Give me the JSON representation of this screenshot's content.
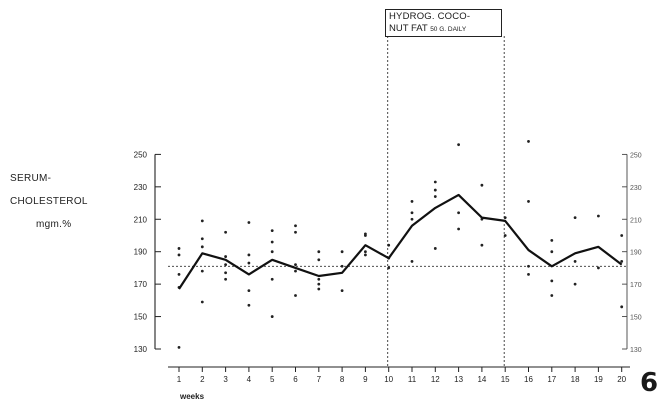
{
  "chart_data": {
    "type": "line",
    "title": "",
    "xlabel": "weeks",
    "ylabel": [
      "SERUM-",
      "CHOLESTEROL",
      "mgm.%"
    ],
    "x": [
      1,
      2,
      3,
      4,
      5,
      6,
      7,
      8,
      9,
      10,
      11,
      12,
      13,
      14,
      15,
      16,
      17,
      18,
      19,
      20
    ],
    "ylim": [
      130,
      250
    ],
    "y_ticks": [
      "130",
      "150",
      "170",
      "190",
      "210",
      "230",
      "250"
    ],
    "y_ticks_right": [
      "130",
      "150",
      "170",
      "190",
      "210",
      "230",
      "250"
    ],
    "mean_series": {
      "values": [
        167,
        189,
        185,
        176,
        185,
        180,
        175,
        177,
        194,
        186,
        206,
        217,
        225,
        211,
        209,
        191,
        181,
        189,
        193,
        182
      ]
    },
    "reference_level": 181,
    "points": [
      [
        1,
        192
      ],
      [
        1,
        188
      ],
      [
        1,
        176
      ],
      [
        1,
        168
      ],
      [
        1,
        131
      ],
      [
        2,
        209
      ],
      [
        2,
        198
      ],
      [
        2,
        193
      ],
      [
        2,
        178
      ],
      [
        2,
        159
      ],
      [
        3,
        202
      ],
      [
        3,
        187
      ],
      [
        3,
        182
      ],
      [
        3,
        177
      ],
      [
        3,
        173
      ],
      [
        4,
        208
      ],
      [
        4,
        188
      ],
      [
        4,
        183
      ],
      [
        4,
        166
      ],
      [
        4,
        157
      ],
      [
        5,
        203
      ],
      [
        5,
        196
      ],
      [
        5,
        190
      ],
      [
        5,
        173
      ],
      [
        5,
        150
      ],
      [
        6,
        206
      ],
      [
        6,
        202
      ],
      [
        6,
        182
      ],
      [
        6,
        178
      ],
      [
        6,
        163
      ],
      [
        7,
        190
      ],
      [
        7,
        185
      ],
      [
        7,
        173
      ],
      [
        7,
        170
      ],
      [
        7,
        167
      ],
      [
        8,
        190
      ],
      [
        8,
        181
      ],
      [
        8,
        166
      ],
      [
        9,
        201
      ],
      [
        9,
        200
      ],
      [
        9,
        190
      ],
      [
        9,
        188
      ],
      [
        10,
        194
      ],
      [
        10,
        186
      ],
      [
        10,
        180
      ],
      [
        11,
        221
      ],
      [
        11,
        214
      ],
      [
        11,
        210
      ],
      [
        11,
        184
      ],
      [
        12,
        233
      ],
      [
        12,
        228
      ],
      [
        12,
        224
      ],
      [
        12,
        192
      ],
      [
        13,
        256
      ],
      [
        13,
        214
      ],
      [
        13,
        204
      ],
      [
        14,
        231
      ],
      [
        14,
        210
      ],
      [
        14,
        194
      ],
      [
        15,
        211
      ],
      [
        15,
        200
      ],
      [
        16,
        258
      ],
      [
        16,
        221
      ],
      [
        16,
        181
      ],
      [
        16,
        176
      ],
      [
        17,
        197
      ],
      [
        17,
        190
      ],
      [
        17,
        172
      ],
      [
        17,
        163
      ],
      [
        18,
        211
      ],
      [
        18,
        184
      ],
      [
        18,
        170
      ],
      [
        19,
        212
      ],
      [
        19,
        180
      ],
      [
        20,
        200
      ],
      [
        20,
        184
      ],
      [
        20,
        156
      ]
    ],
    "treatment_period": {
      "start": 10,
      "end": 15,
      "label_line1": "HYDROG. COCO-",
      "label_line2": "NUT FAT",
      "label_line2_small": "50 G. DAILY"
    },
    "figure_number": "6",
    "grid": false,
    "legend": "none"
  }
}
